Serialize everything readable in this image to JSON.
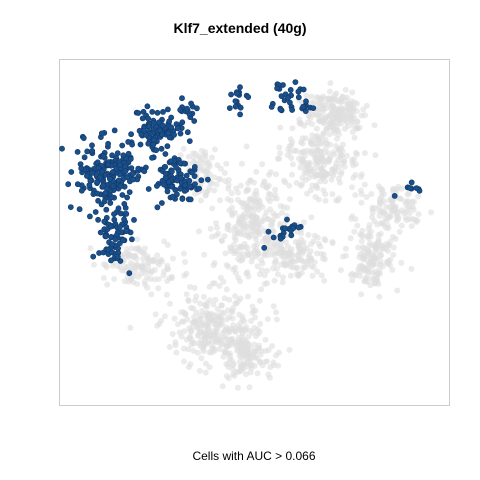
{
  "chart": {
    "title": "Klf7_extended (40g)",
    "caption": "Cells with AUC > 0.066"
  },
  "colors": {
    "highlight": "#1b4f8a",
    "highlight_edge": "#0f3a6b",
    "background_cells": "#dddddd",
    "frame": "#cccccc"
  },
  "chart_data": {
    "type": "scatter",
    "title": "Klf7_extended (40g)",
    "xlabel": "Cells with AUC > 0.066",
    "ylabel": "",
    "axes_visible": false,
    "grid": false,
    "legend": "none",
    "series": [
      {
        "role": "cells below AUC threshold",
        "color": "#dddddd",
        "opacity": 0.6,
        "clusters": [
          {
            "cx": 335,
            "cy": 112,
            "rx": 30,
            "ry": 22,
            "n": 170
          },
          {
            "cx": 320,
            "cy": 160,
            "rx": 40,
            "ry": 35,
            "n": 220
          },
          {
            "cx": 395,
            "cy": 205,
            "rx": 30,
            "ry": 22,
            "n": 100
          },
          {
            "cx": 372,
            "cy": 255,
            "rx": 25,
            "ry": 35,
            "n": 150
          },
          {
            "cx": 250,
            "cy": 225,
            "rx": 35,
            "ry": 55,
            "n": 260
          },
          {
            "cx": 295,
            "cy": 255,
            "rx": 35,
            "ry": 25,
            "n": 130
          },
          {
            "cx": 215,
            "cy": 325,
            "rx": 45,
            "ry": 35,
            "n": 270
          },
          {
            "cx": 245,
            "cy": 355,
            "rx": 30,
            "ry": 25,
            "n": 120
          },
          {
            "cx": 135,
            "cy": 265,
            "rx": 35,
            "ry": 22,
            "n": 120
          },
          {
            "cx": 200,
            "cy": 170,
            "rx": 20,
            "ry": 30,
            "n": 70
          }
        ]
      },
      {
        "role": "cells with AUC > 0.066",
        "color": "#1b4f8a",
        "opacity": 1,
        "clusters": [
          {
            "cx": 110,
            "cy": 175,
            "rx": 32,
            "ry": 35,
            "n": 180
          },
          {
            "cx": 160,
            "cy": 130,
            "rx": 25,
            "ry": 22,
            "n": 90
          },
          {
            "cx": 175,
            "cy": 180,
            "rx": 25,
            "ry": 25,
            "n": 90
          },
          {
            "cx": 115,
            "cy": 235,
            "rx": 18,
            "ry": 28,
            "n": 70
          },
          {
            "cx": 190,
            "cy": 108,
            "rx": 8,
            "ry": 12,
            "n": 12
          },
          {
            "cx": 237,
            "cy": 100,
            "rx": 12,
            "ry": 14,
            "n": 16
          },
          {
            "cx": 285,
            "cy": 95,
            "rx": 15,
            "ry": 18,
            "n": 24
          },
          {
            "cx": 305,
            "cy": 108,
            "rx": 8,
            "ry": 6,
            "n": 8
          },
          {
            "cx": 282,
            "cy": 230,
            "rx": 18,
            "ry": 10,
            "n": 18
          },
          {
            "cx": 410,
            "cy": 190,
            "rx": 20,
            "ry": 6,
            "n": 8
          }
        ]
      }
    ]
  }
}
